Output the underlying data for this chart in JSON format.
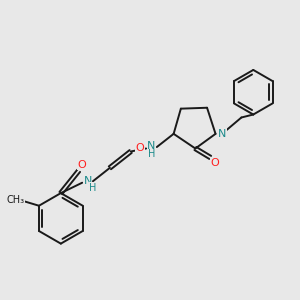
{
  "background_color": "#e8e8e8",
  "bond_color": "#1a1a1a",
  "nitrogen_color": "#1a8a8a",
  "oxygen_color": "#ff2020",
  "carbon_color": "#1a1a1a",
  "figsize": [
    3.0,
    3.0
  ],
  "dpi": 100,
  "xlim": [
    0,
    10
  ],
  "ylim": [
    0,
    10
  ]
}
